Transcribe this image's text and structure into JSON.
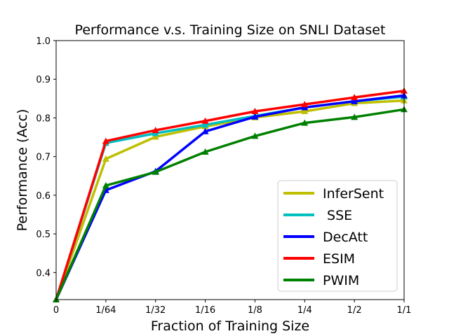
{
  "chart_data": {
    "type": "line",
    "title": "Performance v.s. Training Size on SNLI Dataset",
    "xlabel": "Fraction of Training Size",
    "ylabel": "Performance (Acc)",
    "categories": [
      "0",
      "1/64",
      "1/32",
      "1/16",
      "1/8",
      "1/4",
      "1/2",
      "1/1"
    ],
    "ylim": [
      0.33,
      1.0
    ],
    "yticks": [
      "0.4",
      "0.5",
      "0.6",
      "0.7",
      "0.8",
      "0.9",
      "1.0"
    ],
    "legend_position": "lower-right",
    "series": [
      {
        "name": "InferSent",
        "color": "#bfbf00",
        "values": [
          0.33,
          0.694,
          0.751,
          0.778,
          0.801,
          0.817,
          0.838,
          0.845
        ]
      },
      {
        "name": " SSE",
        "color": "#00bfbf",
        "values": [
          0.33,
          0.735,
          0.76,
          0.782,
          0.805,
          0.827,
          0.843,
          0.855
        ]
      },
      {
        "name": "DecAtt",
        "color": "#0000ff",
        "values": [
          0.33,
          0.613,
          0.662,
          0.765,
          0.803,
          0.827,
          0.843,
          0.858
        ]
      },
      {
        "name": "ESIM",
        "color": "#ff0000",
        "values": [
          0.33,
          0.74,
          0.768,
          0.792,
          0.817,
          0.835,
          0.853,
          0.87
        ]
      },
      {
        "name": "PWIM",
        "color": "#008000",
        "values": [
          0.33,
          0.625,
          0.66,
          0.712,
          0.753,
          0.787,
          0.802,
          0.822
        ]
      }
    ]
  }
}
